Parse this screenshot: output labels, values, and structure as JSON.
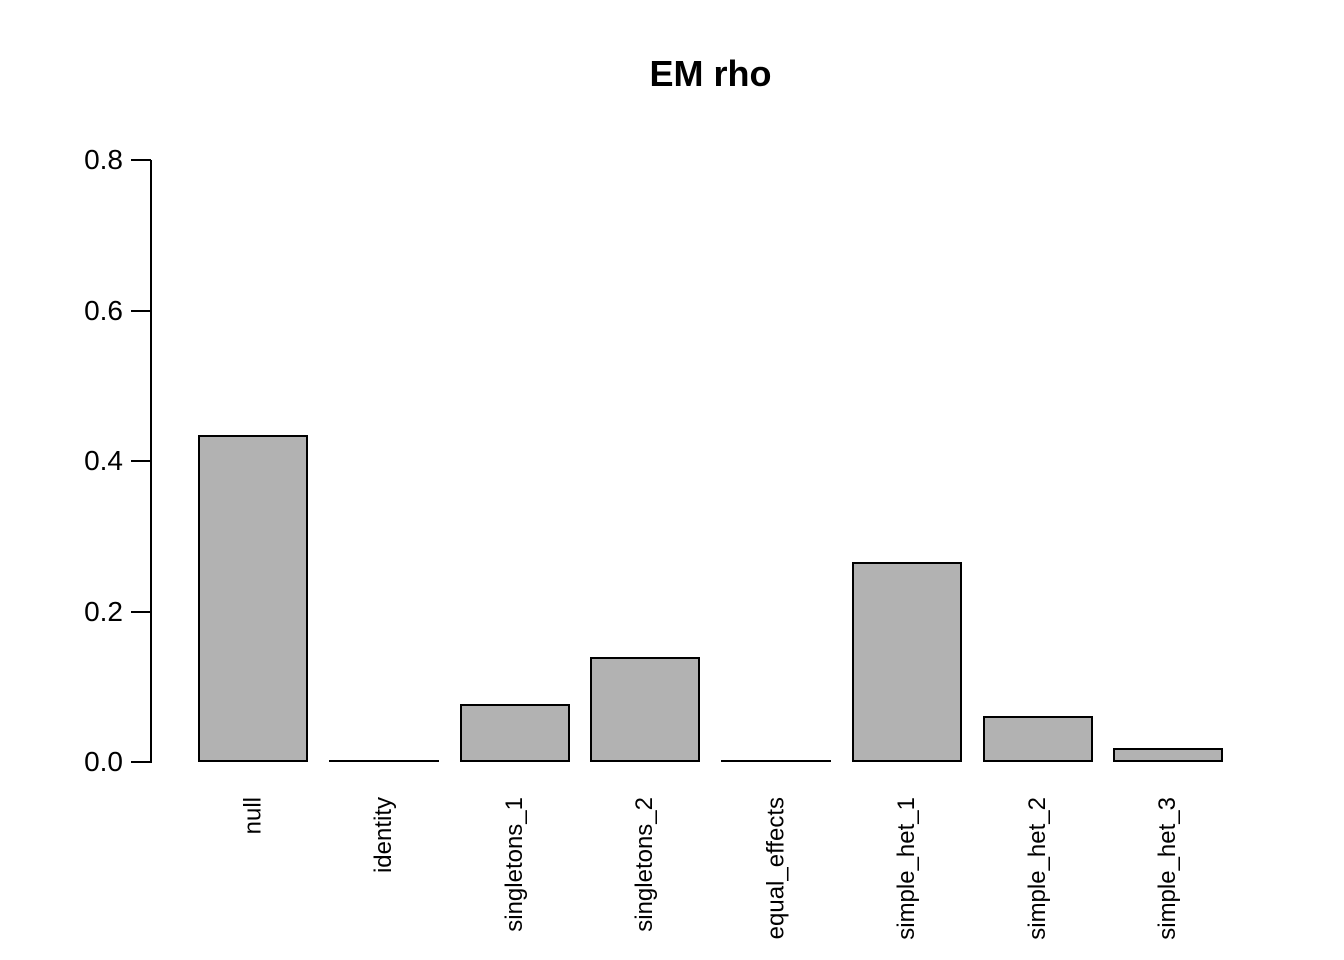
{
  "figure": {
    "background": "#ffffff"
  },
  "chart_data": {
    "type": "bar",
    "title": "EM rho",
    "categories": [
      "null",
      "identity",
      "singletons_1",
      "singletons_2",
      "equal_effects",
      "simple_het_1",
      "simple_het_2",
      "simple_het_3"
    ],
    "values": [
      0.435,
      0,
      0.077,
      0.139,
      0,
      0.266,
      0.061,
      0.018
    ],
    "xlabel": "",
    "ylabel": "",
    "ylim": [
      0,
      0.8
    ],
    "ytick_labels": [
      "0.0",
      "0.2",
      "0.4",
      "0.6",
      "0.8"
    ],
    "ytick_values": [
      0,
      0.2,
      0.4,
      0.6,
      0.8
    ],
    "grid": false,
    "legend": null,
    "bar_fill_color": "#b2b2b2",
    "bar_border_color": "#000000",
    "axis_color": "#000000",
    "text_color": "#000000",
    "background_color": "#ffffff"
  }
}
